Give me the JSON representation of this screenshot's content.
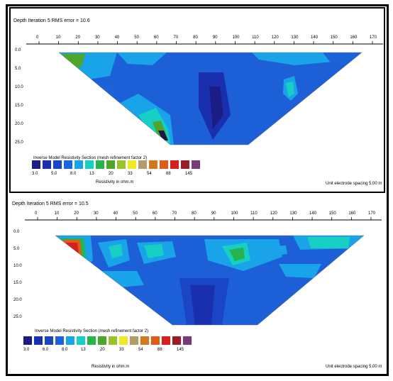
{
  "figure": {
    "panels": [
      {
        "header": "Depth Iteration 5 RMS error = 10.6",
        "x_ticks": [
          "0",
          "10",
          "20",
          "30",
          "40",
          "50",
          "60",
          "70",
          "80",
          "90",
          "100",
          "110",
          "120",
          "130",
          "140",
          "150",
          "160",
          "170"
        ],
        "depth_ticks": [
          "0.0",
          "5.0",
          "10.0",
          "15.0",
          "20.0",
          "25.0"
        ],
        "legend_title": "Inverse Model Resistivity Section (mesh refinement factor 2)",
        "legend_values": [
          "3.0",
          "5.0",
          "8.0",
          "13",
          "20",
          "33",
          "54",
          "88",
          "145"
        ],
        "legend_label": "Resistivity in ohm.m",
        "scale_note": "Unit electrode spacing 5.00 m",
        "legend_colors": [
          "#1c1c86",
          "#1a2fae",
          "#1a46c6",
          "#1c62d8",
          "#19a3e8",
          "#17cfc2",
          "#26b44c",
          "#4fa62c",
          "#9ac22a",
          "#f0e62a",
          "#b89a6a",
          "#d07a1e",
          "#e25a1a",
          "#d62020",
          "#9a1e2a",
          "#7a3a7a"
        ]
      },
      {
        "header": "Depth Iteration 5 RMS error = 10.5",
        "x_ticks": [
          "0",
          "10",
          "20",
          "30",
          "40",
          "50",
          "60",
          "70",
          "80",
          "90",
          "100",
          "110",
          "120",
          "130",
          "140",
          "150",
          "160",
          "170"
        ],
        "depth_ticks": [
          "0.0",
          "5.0",
          "10.0",
          "15.0",
          "20.0",
          "25.0"
        ],
        "legend_title": "Inverse Model Resistivity Section (mesh refinement factor 2)",
        "legend_values": [
          "3.0",
          "6.0",
          "8.0",
          "13",
          "20",
          "33",
          "54",
          "88",
          "145"
        ],
        "legend_label": "Resistivity in ohm.m",
        "scale_note": "Unit electrode spacing 5.00 m",
        "legend_colors": [
          "#1c1c86",
          "#1a2fae",
          "#1a46c6",
          "#1c62d8",
          "#19a3e8",
          "#17cfc2",
          "#26b44c",
          "#4fa62c",
          "#9ac22a",
          "#f0e62a",
          "#b89a6a",
          "#d07a1e",
          "#e25a1a",
          "#d62020",
          "#9a1e2a",
          "#7a3a7a"
        ]
      }
    ]
  }
}
